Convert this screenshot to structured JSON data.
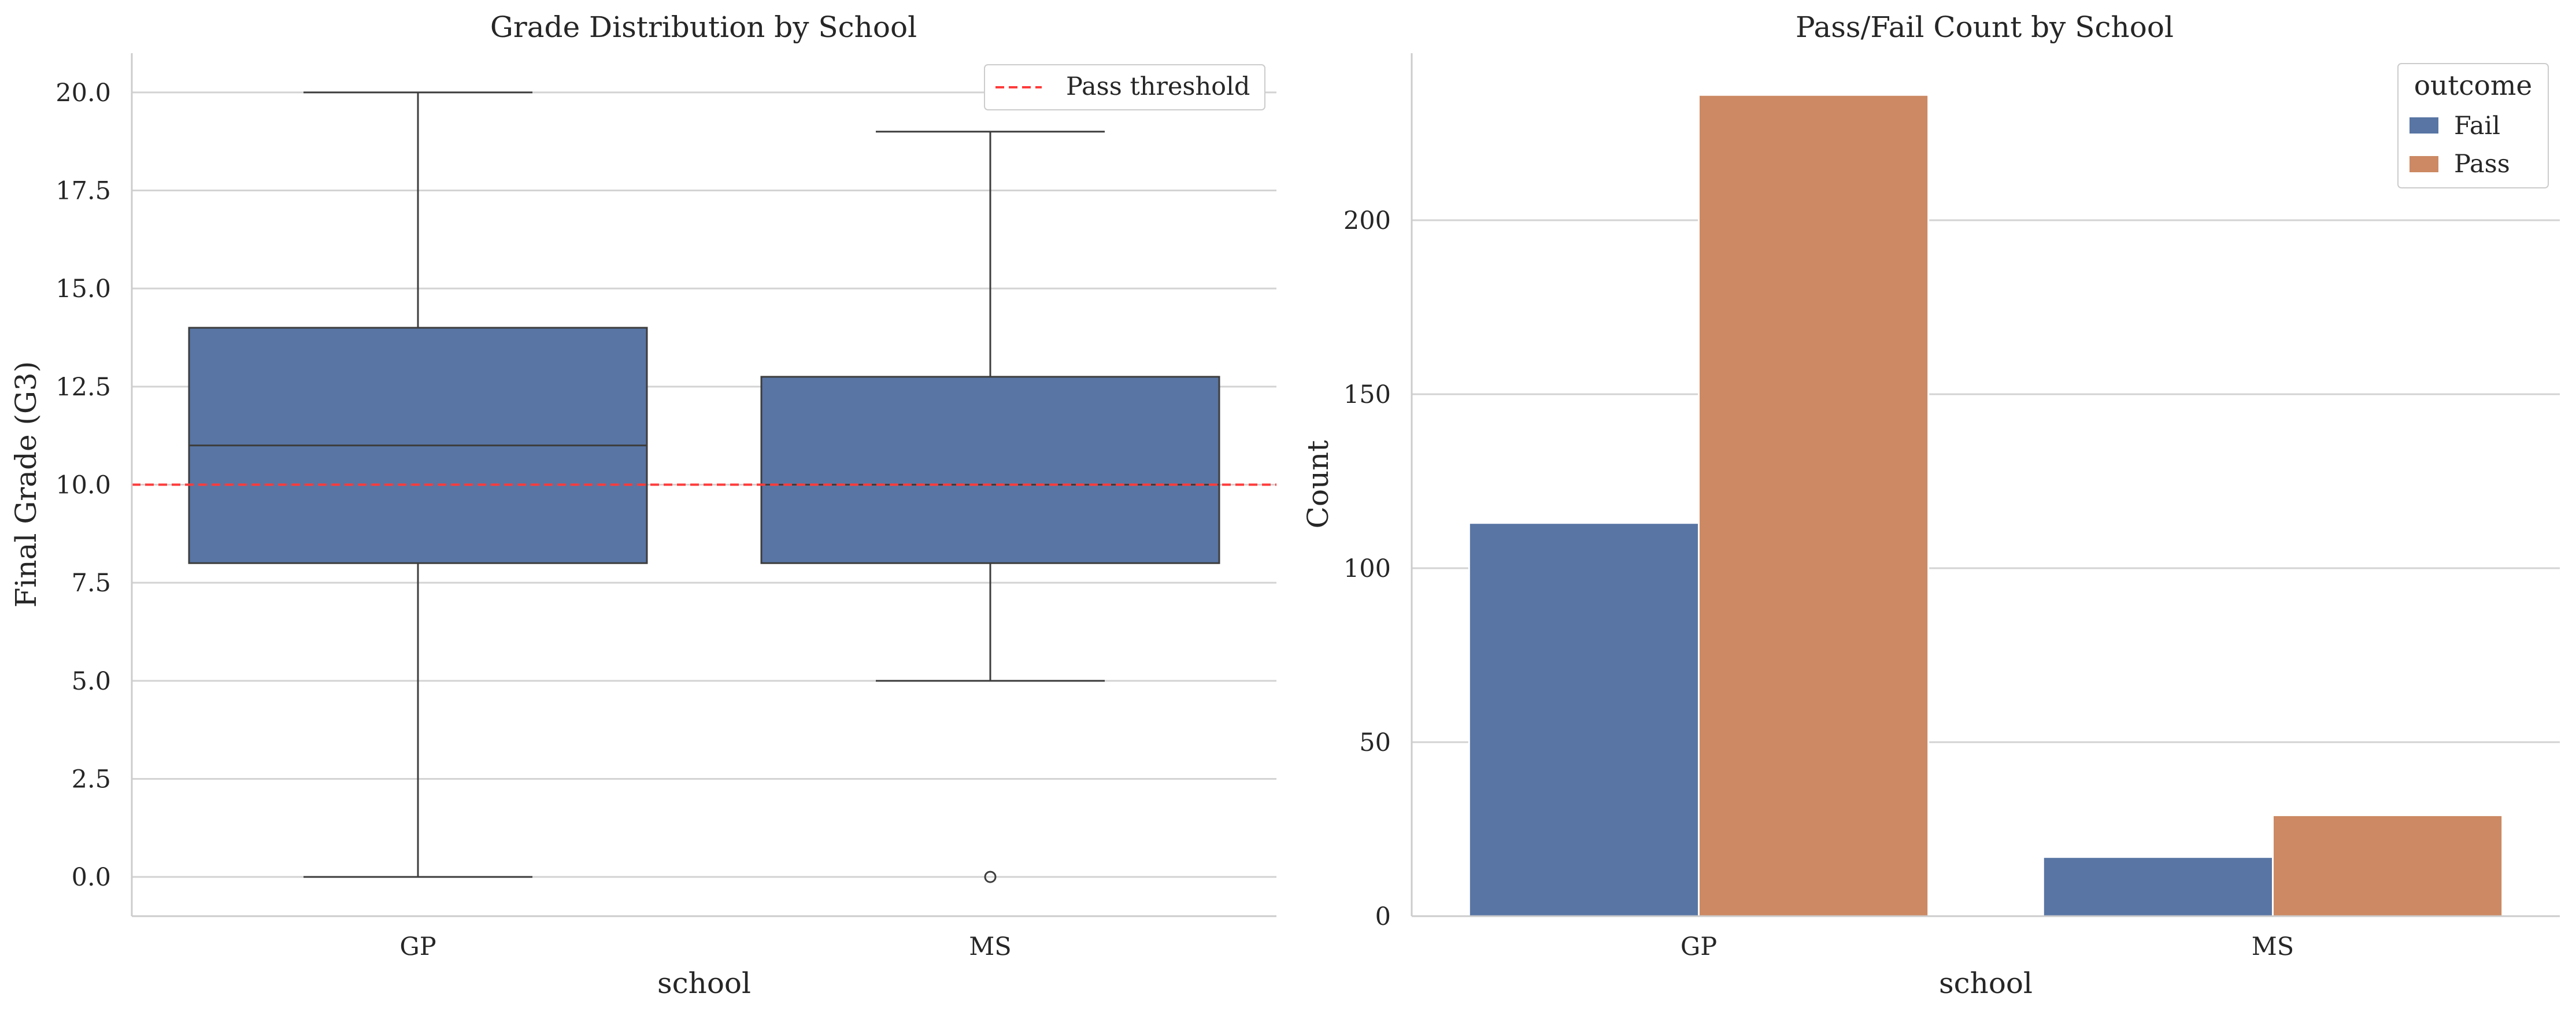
{
  "chart_data": [
    {
      "type": "box",
      "title": "Grade Distribution by School",
      "xlabel": "school",
      "ylabel": "Final Grade (G3)",
      "ylim": [
        -1,
        21
      ],
      "yticks": [
        "0.0",
        "2.5",
        "5.0",
        "7.5",
        "10.0",
        "12.5",
        "15.0",
        "17.5",
        "20.0"
      ],
      "categories": [
        "GP",
        "MS"
      ],
      "boxes": [
        {
          "category": "GP",
          "whisker_low": 0,
          "q1": 8,
          "median": 11,
          "q3": 14,
          "whisker_high": 20,
          "outliers": []
        },
        {
          "category": "MS",
          "whisker_low": 5,
          "q1": 8,
          "median": 10,
          "q3": 12.75,
          "whisker_high": 19,
          "outliers": [
            0
          ]
        }
      ],
      "reference_line": {
        "value": 10,
        "label": "Pass threshold",
        "style": "dashed",
        "color": "#ff3b3b"
      },
      "box_color": "#5875a4",
      "grid": true,
      "legend_position": "top-right"
    },
    {
      "type": "bar",
      "title": "Pass/Fail Count by School",
      "xlabel": "school",
      "ylabel": "Count",
      "ylim": [
        0,
        248
      ],
      "yticks": [
        "0",
        "50",
        "100",
        "150",
        "200"
      ],
      "categories": [
        "GP",
        "MS"
      ],
      "legend_title": "outcome",
      "series": [
        {
          "name": "Fail",
          "values": [
            113,
            17
          ],
          "color": "#5875a4"
        },
        {
          "name": "Pass",
          "values": [
            236,
            29
          ],
          "color": "#cc8963"
        }
      ],
      "grid": true,
      "legend_position": "top-right"
    }
  ]
}
